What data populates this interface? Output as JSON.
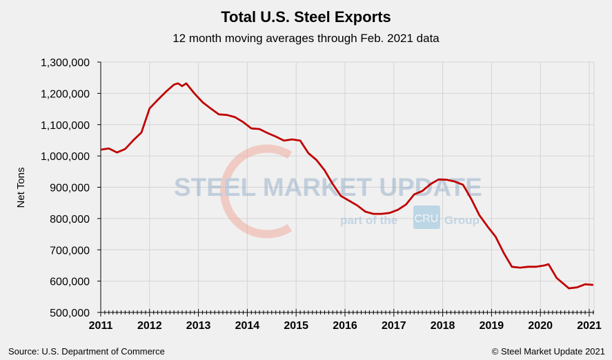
{
  "chart_data": {
    "type": "line",
    "title": "Total U.S. Steel Exports",
    "subtitle": "12 month moving averages through Feb. 2021 data",
    "xlabel": "",
    "ylabel": "Net Tons",
    "ylim": [
      500000,
      1300000
    ],
    "yticks": [
      "500,000",
      "600,000",
      "700,000",
      "800,000",
      "900,000",
      "1,000,000",
      "1,100,000",
      "1,200,000",
      "1,300,000"
    ],
    "xticks": [
      "2011",
      "2012",
      "2013",
      "2014",
      "2015",
      "2016",
      "2017",
      "2018",
      "2019",
      "2020",
      "2021"
    ],
    "grid": true,
    "line_color": "#c00000",
    "series": [
      {
        "x": [
          "2011-01",
          "2011-03",
          "2011-05",
          "2011-07",
          "2011-09",
          "2011-11",
          "2012-01",
          "2012-03",
          "2012-05",
          "2012-07",
          "2012-08",
          "2012-09",
          "2012-10",
          "2012-12",
          "2013-02",
          "2013-04",
          "2013-06",
          "2013-08",
          "2013-10",
          "2013-12",
          "2014-02",
          "2014-04",
          "2014-06",
          "2014-08",
          "2014-10",
          "2014-12",
          "2015-02",
          "2015-04",
          "2015-06",
          "2015-08",
          "2015-10",
          "2015-12",
          "2016-02",
          "2016-04",
          "2016-06",
          "2016-08",
          "2016-10",
          "2016-12",
          "2017-02",
          "2017-04",
          "2017-06",
          "2017-08",
          "2017-10",
          "2017-12",
          "2018-02",
          "2018-04",
          "2018-06",
          "2018-08",
          "2018-10",
          "2018-12",
          "2019-02",
          "2019-04",
          "2019-06",
          "2019-08",
          "2019-10",
          "2019-12",
          "2020-02",
          "2020-03",
          "2020-05",
          "2020-07",
          "2020-08",
          "2020-10",
          "2020-12",
          "2021-02"
        ],
        "values": [
          1020000,
          1024000,
          1011000,
          1022000,
          1050000,
          1075000,
          1152000,
          1179000,
          1205000,
          1228000,
          1232000,
          1223000,
          1232000,
          1200000,
          1172000,
          1152000,
          1133000,
          1131000,
          1124000,
          1108000,
          1088000,
          1086000,
          1073000,
          1062000,
          1049000,
          1053000,
          1049000,
          1009000,
          987000,
          954000,
          910000,
          872000,
          857000,
          842000,
          822000,
          815000,
          815000,
          818000,
          828000,
          845000,
          877000,
          888000,
          910000,
          925000,
          924000,
          918000,
          908000,
          863000,
          811000,
          775000,
          742000,
          690000,
          646000,
          643000,
          646000,
          646000,
          650000,
          654000,
          610000,
          588000,
          577000,
          580000,
          590000,
          588000
        ]
      }
    ]
  },
  "watermark": {
    "brand": "STEEL MARKET UPDATE",
    "tagline_pre": "part of the",
    "tagline_logo": "CRU",
    "tagline_post": "Group"
  },
  "footer": {
    "source": "Source: U.S. Department of Commerce",
    "copyright": "© Steel Market Update 2021"
  }
}
